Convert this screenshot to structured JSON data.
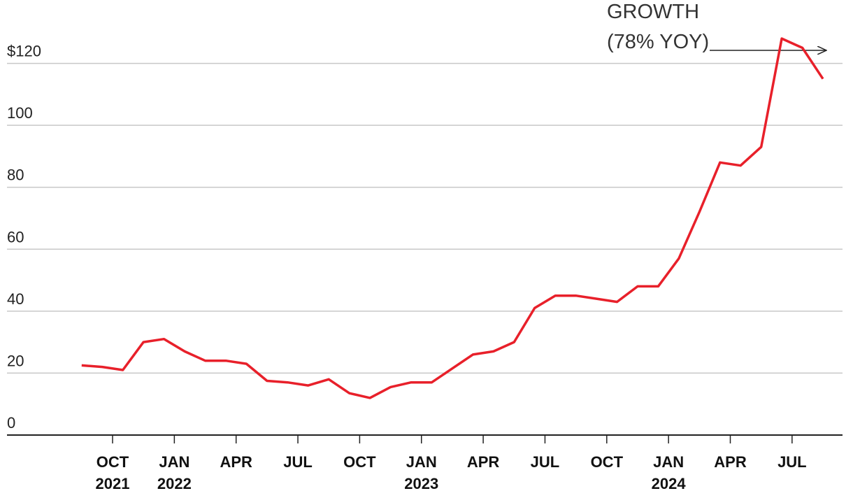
{
  "chart_data": {
    "type": "line",
    "annotation": [
      "GROWTH",
      "(78% YOY)"
    ],
    "x": [
      "2021-08",
      "2021-09",
      "2021-10",
      "2021-11",
      "2021-12",
      "2022-01",
      "2022-02",
      "2022-03",
      "2022-04",
      "2022-05",
      "2022-06",
      "2022-07",
      "2022-08",
      "2022-09",
      "2022-10",
      "2022-11",
      "2022-12",
      "2023-01",
      "2023-02",
      "2023-03",
      "2023-04",
      "2023-05",
      "2023-06",
      "2023-07",
      "2023-08",
      "2023-09",
      "2023-10",
      "2023-11",
      "2023-12",
      "2024-01",
      "2024-02",
      "2024-03",
      "2024-04",
      "2024-05",
      "2024-06",
      "2024-07",
      "2024-08"
    ],
    "series": [
      {
        "color": "#e8202a",
        "values": [
          22.5,
          22,
          21,
          30,
          31,
          27,
          24,
          24,
          23,
          17.5,
          17,
          16,
          18,
          13.5,
          12,
          15.5,
          17,
          17,
          21.5,
          26,
          27,
          30,
          41,
          45,
          45,
          44,
          43,
          48,
          48,
          57,
          72,
          88,
          87,
          93,
          128,
          125,
          115
        ]
      }
    ],
    "ylim": [
      0,
      140
    ],
    "yticks": [
      0,
      20,
      40,
      60,
      80,
      100,
      {
        "value": 120,
        "label": "$120"
      }
    ],
    "xticks": [
      {
        "value": "2021-10",
        "label": "OCT",
        "year": "2021"
      },
      {
        "value": "2022-01",
        "label": "JAN",
        "year": "2022"
      },
      {
        "value": "2022-04",
        "label": "APR"
      },
      {
        "value": "2022-07",
        "label": "JUL"
      },
      {
        "value": "2022-10",
        "label": "OCT"
      },
      {
        "value": "2023-01",
        "label": "JAN",
        "year": "2023"
      },
      {
        "value": "2023-04",
        "label": "APR"
      },
      {
        "value": "2023-07",
        "label": "JUL"
      },
      {
        "value": "2023-10",
        "label": "OCT"
      },
      {
        "value": "2024-01",
        "label": "JAN",
        "year": "2024"
      },
      {
        "value": "2024-04",
        "label": "APR"
      },
      {
        "value": "2024-07",
        "label": "JUL"
      }
    ],
    "grid": true
  }
}
